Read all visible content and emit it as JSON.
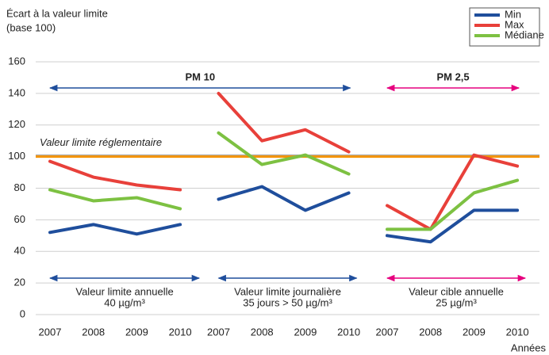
{
  "chart_data": {
    "type": "line",
    "title": "Écart à la valeur limite",
    "subtitle": "(base 100)",
    "x_label": "Années",
    "ylim": [
      0,
      160
    ],
    "yticks": [
      0,
      20,
      40,
      60,
      80,
      100,
      120,
      140,
      160
    ],
    "grid": true,
    "legend": "top-right",
    "reference_line": {
      "value": 100,
      "label": "Valeur limite réglementaire",
      "color": "#f39200"
    },
    "pollutants": [
      {
        "label": "PM 10",
        "color": "#1f4e9c"
      },
      {
        "label": "PM 2,5",
        "color": "#e6007e"
      }
    ],
    "groups": [
      {
        "label": "Valeur limite annuelle",
        "sublabel": "40 µg/m³",
        "categories": [
          "2007",
          "2008",
          "2009",
          "2010"
        ]
      },
      {
        "label": "Valeur limite journalière",
        "sublabel": "35 jours > 50 µg/m³",
        "categories": [
          "2007",
          "2008",
          "2009",
          "2010"
        ]
      },
      {
        "label": "Valeur cible annuelle",
        "sublabel": "25 µg/m³",
        "categories": [
          "2007",
          "2008",
          "2009",
          "2010"
        ]
      }
    ],
    "series": [
      {
        "name": "Min",
        "color": "#1f4e9c",
        "values": [
          [
            52,
            57,
            51,
            57
          ],
          [
            73,
            81,
            66,
            77
          ],
          [
            50,
            46,
            66,
            66
          ]
        ]
      },
      {
        "name": "Max",
        "color": "#e8403a",
        "values": [
          [
            97,
            87,
            82,
            79
          ],
          [
            140,
            110,
            117,
            103
          ],
          [
            69,
            54,
            101,
            94
          ]
        ]
      },
      {
        "name": "Médiane",
        "color": "#7dc142",
        "values": [
          [
            79,
            72,
            74,
            67
          ],
          [
            115,
            95,
            101,
            89
          ],
          [
            54,
            54,
            77,
            85
          ]
        ]
      }
    ]
  }
}
